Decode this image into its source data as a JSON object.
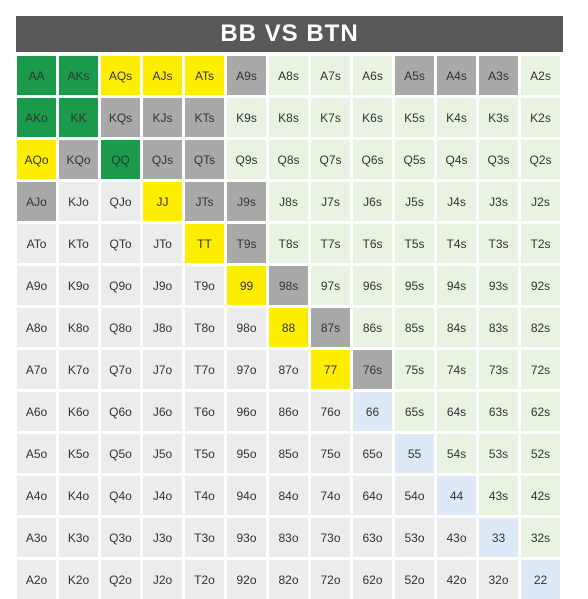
{
  "title": "BB VS BTN",
  "colors": {
    "green": "#1a9a4a",
    "yellow": "#ffee00",
    "gray": "#a9a9a9",
    "light_green": "#e9f3e1",
    "light_blue": "#dde9f7",
    "light_gray": "#ececec"
  },
  "rows": [
    [
      {
        "label": "AA",
        "c": "green"
      },
      {
        "label": "AKs",
        "c": "green"
      },
      {
        "label": "AQs",
        "c": "yellow"
      },
      {
        "label": "AJs",
        "c": "yellow"
      },
      {
        "label": "ATs",
        "c": "yellow"
      },
      {
        "label": "A9s",
        "c": "gray"
      },
      {
        "label": "A8s",
        "c": "light_green"
      },
      {
        "label": "A7s",
        "c": "light_green"
      },
      {
        "label": "A6s",
        "c": "light_green"
      },
      {
        "label": "A5s",
        "c": "gray"
      },
      {
        "label": "A4s",
        "c": "gray"
      },
      {
        "label": "A3s",
        "c": "gray"
      },
      {
        "label": "A2s",
        "c": "light_green"
      }
    ],
    [
      {
        "label": "AKo",
        "c": "green"
      },
      {
        "label": "KK",
        "c": "green"
      },
      {
        "label": "KQs",
        "c": "gray"
      },
      {
        "label": "KJs",
        "c": "gray"
      },
      {
        "label": "KTs",
        "c": "gray"
      },
      {
        "label": "K9s",
        "c": "light_green"
      },
      {
        "label": "K8s",
        "c": "light_green"
      },
      {
        "label": "K7s",
        "c": "light_green"
      },
      {
        "label": "K6s",
        "c": "light_green"
      },
      {
        "label": "K5s",
        "c": "light_green"
      },
      {
        "label": "K4s",
        "c": "light_green"
      },
      {
        "label": "K3s",
        "c": "light_green"
      },
      {
        "label": "K2s",
        "c": "light_green"
      }
    ],
    [
      {
        "label": "AQo",
        "c": "yellow"
      },
      {
        "label": "KQo",
        "c": "gray"
      },
      {
        "label": "QQ",
        "c": "green"
      },
      {
        "label": "QJs",
        "c": "gray"
      },
      {
        "label": "QTs",
        "c": "gray"
      },
      {
        "label": "Q9s",
        "c": "light_green"
      },
      {
        "label": "Q8s",
        "c": "light_green"
      },
      {
        "label": "Q7s",
        "c": "light_green"
      },
      {
        "label": "Q6s",
        "c": "light_green"
      },
      {
        "label": "Q5s",
        "c": "light_green"
      },
      {
        "label": "Q4s",
        "c": "light_green"
      },
      {
        "label": "Q3s",
        "c": "light_green"
      },
      {
        "label": "Q2s",
        "c": "light_green"
      }
    ],
    [
      {
        "label": "AJo",
        "c": "gray"
      },
      {
        "label": "KJo",
        "c": "light_gray"
      },
      {
        "label": "QJo",
        "c": "light_gray"
      },
      {
        "label": "JJ",
        "c": "yellow"
      },
      {
        "label": "JTs",
        "c": "gray"
      },
      {
        "label": "J9s",
        "c": "gray"
      },
      {
        "label": "J8s",
        "c": "light_green"
      },
      {
        "label": "J7s",
        "c": "light_green"
      },
      {
        "label": "J6s",
        "c": "light_green"
      },
      {
        "label": "J5s",
        "c": "light_green"
      },
      {
        "label": "J4s",
        "c": "light_green"
      },
      {
        "label": "J3s",
        "c": "light_green"
      },
      {
        "label": "J2s",
        "c": "light_green"
      }
    ],
    [
      {
        "label": "ATo",
        "c": "light_gray"
      },
      {
        "label": "KTo",
        "c": "light_gray"
      },
      {
        "label": "QTo",
        "c": "light_gray"
      },
      {
        "label": "JTo",
        "c": "light_gray"
      },
      {
        "label": "TT",
        "c": "yellow"
      },
      {
        "label": "T9s",
        "c": "gray"
      },
      {
        "label": "T8s",
        "c": "light_green"
      },
      {
        "label": "T7s",
        "c": "light_green"
      },
      {
        "label": "T6s",
        "c": "light_green"
      },
      {
        "label": "T5s",
        "c": "light_green"
      },
      {
        "label": "T4s",
        "c": "light_green"
      },
      {
        "label": "T3s",
        "c": "light_green"
      },
      {
        "label": "T2s",
        "c": "light_green"
      }
    ],
    [
      {
        "label": "A9o",
        "c": "light_gray"
      },
      {
        "label": "K9o",
        "c": "light_gray"
      },
      {
        "label": "Q9o",
        "c": "light_gray"
      },
      {
        "label": "J9o",
        "c": "light_gray"
      },
      {
        "label": "T9o",
        "c": "light_gray"
      },
      {
        "label": "99",
        "c": "yellow"
      },
      {
        "label": "98s",
        "c": "gray"
      },
      {
        "label": "97s",
        "c": "light_green"
      },
      {
        "label": "96s",
        "c": "light_green"
      },
      {
        "label": "95s",
        "c": "light_green"
      },
      {
        "label": "94s",
        "c": "light_green"
      },
      {
        "label": "93s",
        "c": "light_green"
      },
      {
        "label": "92s",
        "c": "light_green"
      }
    ],
    [
      {
        "label": "A8o",
        "c": "light_gray"
      },
      {
        "label": "K8o",
        "c": "light_gray"
      },
      {
        "label": "Q8o",
        "c": "light_gray"
      },
      {
        "label": "J8o",
        "c": "light_gray"
      },
      {
        "label": "T8o",
        "c": "light_gray"
      },
      {
        "label": "98o",
        "c": "light_gray"
      },
      {
        "label": "88",
        "c": "yellow"
      },
      {
        "label": "87s",
        "c": "gray"
      },
      {
        "label": "86s",
        "c": "light_green"
      },
      {
        "label": "85s",
        "c": "light_green"
      },
      {
        "label": "84s",
        "c": "light_green"
      },
      {
        "label": "83s",
        "c": "light_green"
      },
      {
        "label": "82s",
        "c": "light_green"
      }
    ],
    [
      {
        "label": "A7o",
        "c": "light_gray"
      },
      {
        "label": "K7o",
        "c": "light_gray"
      },
      {
        "label": "Q7o",
        "c": "light_gray"
      },
      {
        "label": "J7o",
        "c": "light_gray"
      },
      {
        "label": "T7o",
        "c": "light_gray"
      },
      {
        "label": "97o",
        "c": "light_gray"
      },
      {
        "label": "87o",
        "c": "light_gray"
      },
      {
        "label": "77",
        "c": "yellow"
      },
      {
        "label": "76s",
        "c": "gray"
      },
      {
        "label": "75s",
        "c": "light_green"
      },
      {
        "label": "74s",
        "c": "light_green"
      },
      {
        "label": "73s",
        "c": "light_green"
      },
      {
        "label": "72s",
        "c": "light_green"
      }
    ],
    [
      {
        "label": "A6o",
        "c": "light_gray"
      },
      {
        "label": "K6o",
        "c": "light_gray"
      },
      {
        "label": "Q6o",
        "c": "light_gray"
      },
      {
        "label": "J6o",
        "c": "light_gray"
      },
      {
        "label": "T6o",
        "c": "light_gray"
      },
      {
        "label": "96o",
        "c": "light_gray"
      },
      {
        "label": "86o",
        "c": "light_gray"
      },
      {
        "label": "76o",
        "c": "light_gray"
      },
      {
        "label": "66",
        "c": "light_blue"
      },
      {
        "label": "65s",
        "c": "light_green"
      },
      {
        "label": "64s",
        "c": "light_green"
      },
      {
        "label": "63s",
        "c": "light_green"
      },
      {
        "label": "62s",
        "c": "light_green"
      }
    ],
    [
      {
        "label": "A5o",
        "c": "light_gray"
      },
      {
        "label": "K5o",
        "c": "light_gray"
      },
      {
        "label": "Q5o",
        "c": "light_gray"
      },
      {
        "label": "J5o",
        "c": "light_gray"
      },
      {
        "label": "T5o",
        "c": "light_gray"
      },
      {
        "label": "95o",
        "c": "light_gray"
      },
      {
        "label": "85o",
        "c": "light_gray"
      },
      {
        "label": "75o",
        "c": "light_gray"
      },
      {
        "label": "65o",
        "c": "light_gray"
      },
      {
        "label": "55",
        "c": "light_blue"
      },
      {
        "label": "54s",
        "c": "light_green"
      },
      {
        "label": "53s",
        "c": "light_green"
      },
      {
        "label": "52s",
        "c": "light_green"
      }
    ],
    [
      {
        "label": "A4o",
        "c": "light_gray"
      },
      {
        "label": "K4o",
        "c": "light_gray"
      },
      {
        "label": "Q4o",
        "c": "light_gray"
      },
      {
        "label": "J4o",
        "c": "light_gray"
      },
      {
        "label": "T4o",
        "c": "light_gray"
      },
      {
        "label": "94o",
        "c": "light_gray"
      },
      {
        "label": "84o",
        "c": "light_gray"
      },
      {
        "label": "74o",
        "c": "light_gray"
      },
      {
        "label": "64o",
        "c": "light_gray"
      },
      {
        "label": "54o",
        "c": "light_gray"
      },
      {
        "label": "44",
        "c": "light_blue"
      },
      {
        "label": "43s",
        "c": "light_green"
      },
      {
        "label": "42s",
        "c": "light_green"
      }
    ],
    [
      {
        "label": "A3o",
        "c": "light_gray"
      },
      {
        "label": "K3o",
        "c": "light_gray"
      },
      {
        "label": "Q3o",
        "c": "light_gray"
      },
      {
        "label": "J3o",
        "c": "light_gray"
      },
      {
        "label": "T3o",
        "c": "light_gray"
      },
      {
        "label": "93o",
        "c": "light_gray"
      },
      {
        "label": "83o",
        "c": "light_gray"
      },
      {
        "label": "73o",
        "c": "light_gray"
      },
      {
        "label": "63o",
        "c": "light_gray"
      },
      {
        "label": "53o",
        "c": "light_gray"
      },
      {
        "label": "43o",
        "c": "light_gray"
      },
      {
        "label": "33",
        "c": "light_blue"
      },
      {
        "label": "32s",
        "c": "light_green"
      }
    ],
    [
      {
        "label": "A2o",
        "c": "light_gray"
      },
      {
        "label": "K2o",
        "c": "light_gray"
      },
      {
        "label": "Q2o",
        "c": "light_gray"
      },
      {
        "label": "J2o",
        "c": "light_gray"
      },
      {
        "label": "T2o",
        "c": "light_gray"
      },
      {
        "label": "92o",
        "c": "light_gray"
      },
      {
        "label": "82o",
        "c": "light_gray"
      },
      {
        "label": "72o",
        "c": "light_gray"
      },
      {
        "label": "62o",
        "c": "light_gray"
      },
      {
        "label": "52o",
        "c": "light_gray"
      },
      {
        "label": "42o",
        "c": "light_gray"
      },
      {
        "label": "32o",
        "c": "light_gray"
      },
      {
        "label": "22",
        "c": "light_blue"
      }
    ]
  ]
}
